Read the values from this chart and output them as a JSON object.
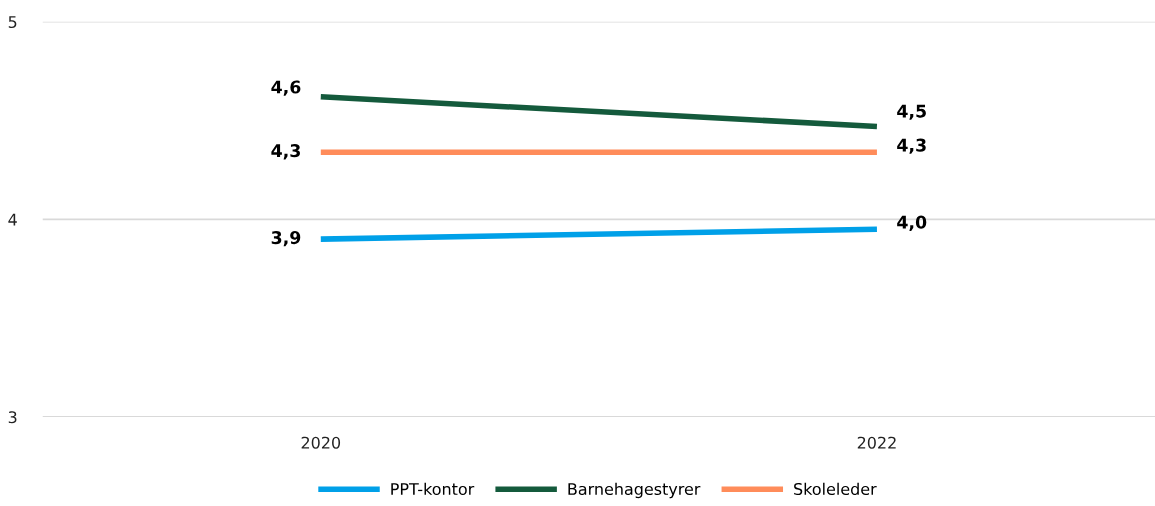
{
  "chart_data": {
    "type": "line",
    "categories": [
      "2020",
      "2022"
    ],
    "series": [
      {
        "name": "PPT-kontor",
        "color": "#00a0e8",
        "values": [
          3.9,
          3.95
        ],
        "value_labels": [
          "3,9",
          "4,0"
        ]
      },
      {
        "name": "Barnehagestyrer",
        "color": "#145a3c",
        "values": [
          4.62,
          4.47
        ],
        "value_labels": [
          "4,6",
          "4,5"
        ]
      },
      {
        "name": "Skoleleder",
        "color": "#ff8c5a",
        "values": [
          4.34,
          4.34
        ],
        "value_labels": [
          "4,3",
          "4,3"
        ]
      }
    ],
    "ylim": [
      3,
      5
    ],
    "yticks": [
      3,
      4,
      5
    ],
    "grid": "y",
    "legend": "bottom",
    "marker": "none",
    "line_style": "solid"
  }
}
